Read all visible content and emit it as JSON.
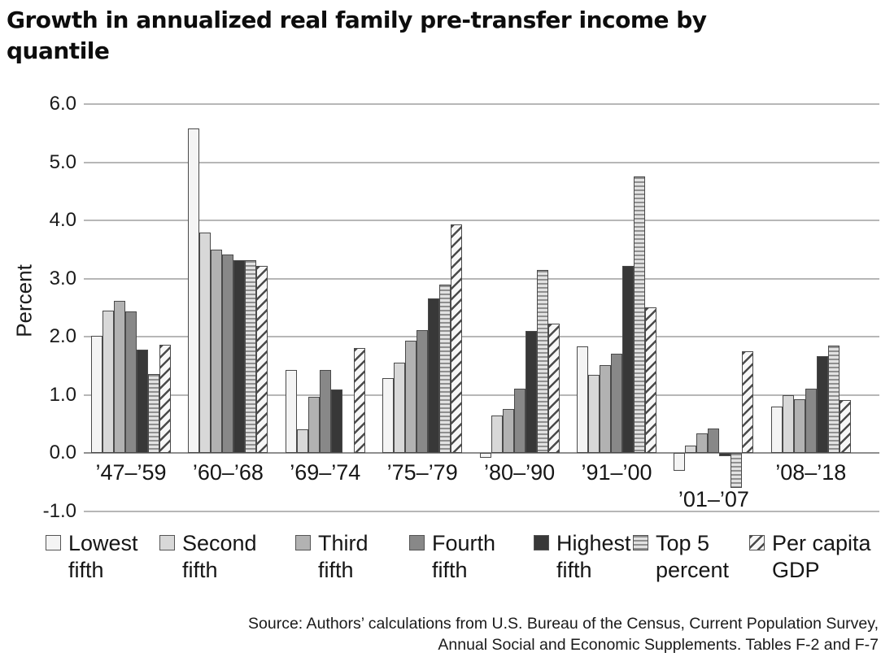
{
  "title": "Growth in annualized real family pre-transfer income by quantile",
  "y_axis": {
    "label": "Percent",
    "tick_labels": [
      "6.0",
      "5.0",
      "4.0",
      "3.0",
      "2.0",
      "1.0",
      "0.0",
      "-1.0"
    ]
  },
  "source": {
    "line1": "Source: Authors’ calculations from U.S. Bureau of the Census, Current Population Survey,",
    "line2": "Annual Social and Economic Supplements. Tables F-2 and F-7"
  },
  "colors": {
    "text": "#1a1a1a",
    "gridline": "#b7b7b7",
    "bar_border": "#4a4a4a"
  },
  "chart_data": {
    "type": "bar",
    "title": "Growth in annualized real family pre-transfer income by quantile",
    "xlabel": "",
    "ylabel": "Percent",
    "ylim": [
      -1.0,
      6.0
    ],
    "ytick_interval": 1.0,
    "grid": true,
    "legend_position": "bottom",
    "categories": [
      "’47–’59",
      "’60–’68",
      "’69–’74",
      "’75–’79",
      "’80–’90",
      "’91–’00",
      "’01–’07",
      "’08–’18"
    ],
    "series": [
      {
        "name": "Lowest fifth",
        "legend_line1": "Lowest",
        "legend_line2": "fifth",
        "pattern": "solid",
        "fill": "#f4f4f4",
        "values": [
          2.02,
          5.58,
          1.43,
          1.29,
          -0.08,
          1.83,
          -0.31,
          0.8
        ]
      },
      {
        "name": "Second fifth",
        "legend_line1": "Second",
        "legend_line2": "fifth",
        "pattern": "solid",
        "fill": "#d8d8d8",
        "values": [
          2.45,
          3.79,
          0.41,
          1.56,
          0.65,
          1.35,
          0.13,
          1.0
        ]
      },
      {
        "name": "Third fifth",
        "legend_line1": "Third",
        "legend_line2": "fifth",
        "pattern": "solid",
        "fill": "#b2b2b2",
        "values": [
          2.61,
          3.5,
          0.96,
          1.93,
          0.76,
          1.51,
          0.34,
          0.93
        ]
      },
      {
        "name": "Fourth fifth",
        "legend_line1": "Fourth",
        "legend_line2": "fifth",
        "pattern": "solid",
        "fill": "#888888",
        "values": [
          2.43,
          3.41,
          1.43,
          2.11,
          1.1,
          1.7,
          0.42,
          1.11
        ]
      },
      {
        "name": "Highest fifth",
        "legend_line1": "Highest",
        "legend_line2": "fifth",
        "pattern": "solid",
        "fill": "#383838",
        "values": [
          1.78,
          3.32,
          1.09,
          2.66,
          2.1,
          3.22,
          -0.05,
          1.66
        ]
      },
      {
        "name": "Top 5 percent",
        "legend_line1": "Top 5",
        "legend_line2": "percent",
        "pattern": "hstripes",
        "fill": "#e2e2e2",
        "values": [
          1.36,
          3.31,
          0.0,
          2.9,
          3.15,
          4.76,
          -0.6,
          1.85
        ]
      },
      {
        "name": "Per capita GDP",
        "legend_line1": "Per capita",
        "legend_line2": "GDP",
        "pattern": "diagonal",
        "fill": "#f7f7f7",
        "values": [
          1.86,
          3.22,
          1.81,
          3.93,
          2.22,
          2.51,
          1.75,
          0.91
        ]
      }
    ]
  }
}
